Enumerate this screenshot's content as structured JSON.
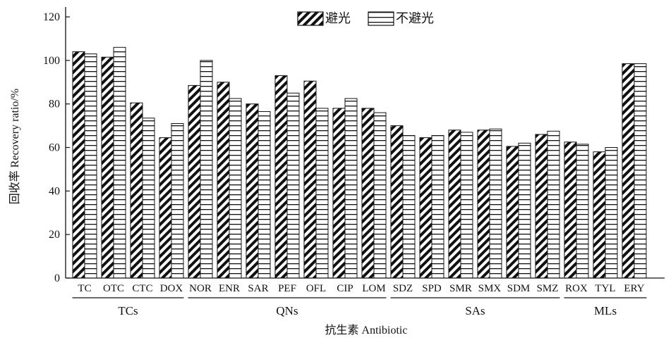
{
  "chart_data": {
    "type": "bar",
    "ylabel": "回收率 Recovery ratio/%",
    "xlabel": "抗生素 Antibiotic",
    "ylim": [
      0,
      120
    ],
    "yticks": [
      "0",
      "20",
      "40",
      "60",
      "80",
      "100",
      "120"
    ],
    "legend_position": "top-center",
    "grid": false,
    "categories": [
      "TC",
      "OTC",
      "CTC",
      "DOX",
      "NOR",
      "ENR",
      "SAR",
      "PEF",
      "OFL",
      "CIP",
      "LOM",
      "SDZ",
      "SPD",
      "SMR",
      "SMX",
      "SDM",
      "SMZ",
      "ROX",
      "TYL",
      "ERY"
    ],
    "groups": [
      {
        "name": "TCs",
        "start": 0,
        "end": 3
      },
      {
        "name": "QNs",
        "start": 4,
        "end": 10
      },
      {
        "name": "SAs",
        "start": 11,
        "end": 16
      },
      {
        "name": "MLs",
        "start": 17,
        "end": 19
      }
    ],
    "series": [
      {
        "name": "避光",
        "pattern": "diagonal",
        "values": [
          104,
          101.5,
          80.5,
          64.5,
          88.5,
          90,
          80,
          93,
          90.5,
          78,
          78,
          70,
          64.5,
          68,
          68,
          60.5,
          66,
          62.5,
          58,
          98.5
        ]
      },
      {
        "name": "不避光",
        "pattern": "horizontal",
        "values": [
          103,
          106,
          73.5,
          71,
          100,
          82.5,
          76.5,
          85,
          78,
          82.5,
          76,
          65.5,
          65.5,
          67,
          68.5,
          62,
          67.5,
          61.5,
          60,
          98.5
        ]
      }
    ]
  }
}
